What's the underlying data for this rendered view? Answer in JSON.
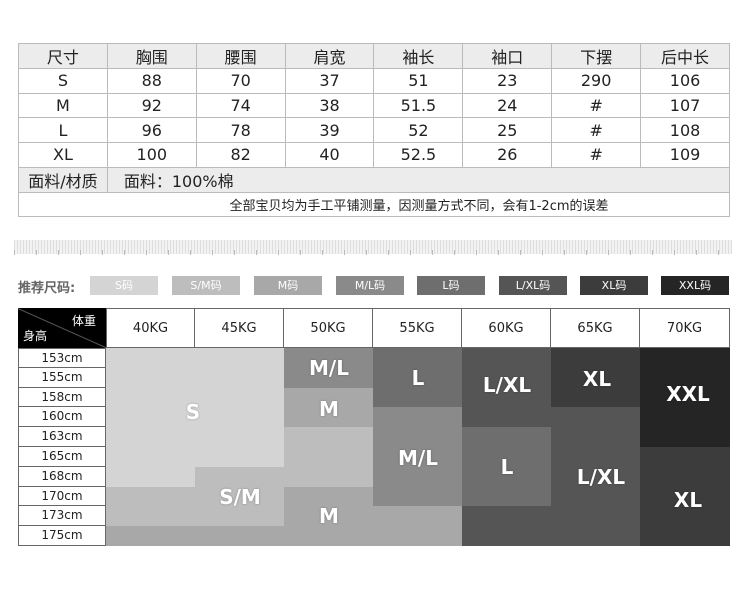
{
  "spec_table": {
    "headers": [
      "尺寸",
      "胸围",
      "腰围",
      "肩宽",
      "袖长",
      "袖口",
      "下摆",
      "后中长"
    ],
    "rows": [
      [
        "S",
        "88",
        "70",
        "37",
        "51",
        "23",
        "290",
        "106"
      ],
      [
        "M",
        "92",
        "74",
        "38",
        "51.5",
        "24",
        "#",
        "107"
      ],
      [
        "L",
        "96",
        "78",
        "39",
        "52",
        "25",
        "#",
        "108"
      ],
      [
        "XL",
        "100",
        "82",
        "40",
        "52.5",
        "26",
        "#",
        "109"
      ]
    ],
    "material_label": "面料/材质",
    "material_value": "面料：100%棉",
    "note": "全部宝贝均为手工平铺测量，因测量方式不同，会有1-2cm的误差"
  },
  "recommend": {
    "label": "推荐尺码:",
    "chips": [
      {
        "text": "S码",
        "color": "#d4d4d4"
      },
      {
        "text": "S/M码",
        "color": "#bdbdbd"
      },
      {
        "text": "M码",
        "color": "#a8a8a8"
      },
      {
        "text": "M/L码",
        "color": "#8a8a8a"
      },
      {
        "text": "L码",
        "color": "#6e6e6e"
      },
      {
        "text": "L/XL码",
        "color": "#555555"
      },
      {
        "text": "XL码",
        "color": "#3c3c3c"
      },
      {
        "text": "XXL码",
        "color": "#252525"
      }
    ]
  },
  "grid": {
    "weight_label": "体重",
    "height_label": "身高",
    "weights": [
      "40KG",
      "45KG",
      "50KG",
      "55KG",
      "60KG",
      "65KG",
      "70KG"
    ],
    "heights": [
      "153cm",
      "155cm",
      "158cm",
      "160cm",
      "163cm",
      "165cm",
      "168cm",
      "170cm",
      "173cm",
      "175cm"
    ],
    "colors": {
      "S": "#d4d4d4",
      "S/M": "#bdbdbd",
      "M": "#a8a8a8",
      "M/L": "#8a8a8a",
      "L": "#6e6e6e",
      "L/XL": "#555555",
      "XL": "#3c3c3c",
      "XXL": "#252525"
    },
    "matrix": [
      [
        "S",
        "S",
        "M/L",
        "L",
        "L/XL",
        "XL",
        "XXL"
      ],
      [
        "S",
        "S",
        "M/L",
        "L",
        "L/XL",
        "XL",
        "XXL"
      ],
      [
        "S",
        "S",
        "M",
        "L",
        "L/XL",
        "XL",
        "XXL"
      ],
      [
        "S",
        "S",
        "M",
        "M/L",
        "L/XL",
        "L/XL",
        "XXL"
      ],
      [
        "S",
        "S",
        "S/M",
        "M/L",
        "L",
        "L/XL",
        "XXL"
      ],
      [
        "S",
        "S",
        "S/M",
        "M/L",
        "L",
        "L/XL",
        "XL"
      ],
      [
        "S",
        "S/M",
        "S/M",
        "M/L",
        "L",
        "L/XL",
        "XL"
      ],
      [
        "S/M",
        "S/M",
        "M",
        "M/L",
        "L",
        "L/XL",
        "XL"
      ],
      [
        "S/M",
        "S/M",
        "M",
        "M",
        "L/XL",
        "L/XL",
        "XL"
      ],
      [
        "M",
        "M",
        "M",
        "M",
        "L/XL",
        "L/XL",
        "XL"
      ]
    ],
    "labels": [
      "S",
      "S/M",
      "M/L",
      "M",
      "M",
      "L",
      "M/L",
      "L/XL",
      "L",
      "XL",
      "L/XL",
      "XXL",
      "XL"
    ]
  }
}
